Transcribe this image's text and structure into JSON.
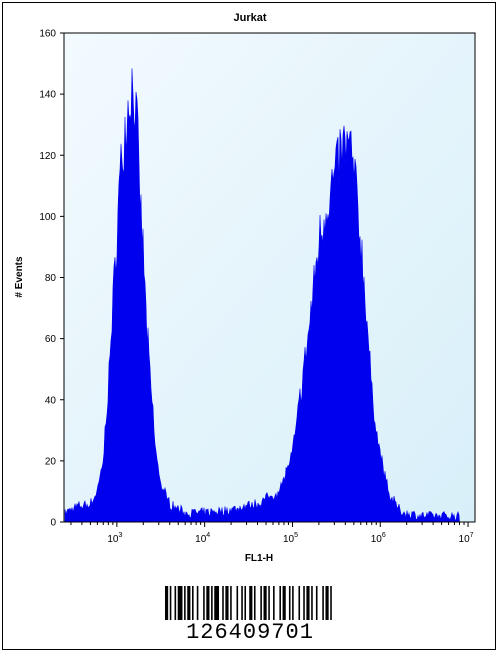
{
  "chart_data": {
    "type": "area",
    "title": "Jurkat",
    "xlabel": "FL1-H",
    "ylabel": "# Events",
    "xscale": "log",
    "xlim": [
      250,
      12000000
    ],
    "ylim": [
      0,
      160
    ],
    "yticks": [
      "0",
      "20",
      "40",
      "60",
      "80",
      "100",
      "120",
      "140",
      "160"
    ],
    "xticks": [
      {
        "base": "10",
        "exp": "3",
        "value": 1000
      },
      {
        "base": "10",
        "exp": "4",
        "value": 10000
      },
      {
        "base": "10",
        "exp": "5",
        "value": 100000
      },
      {
        "base": "10",
        "exp": "6",
        "value": 1000000
      },
      {
        "base": "10",
        "exp": "7",
        "value": 10000000
      }
    ],
    "grid": false,
    "colors": {
      "fill": "#0000ee",
      "plot_background": "#e6f4fb"
    },
    "series": [
      {
        "points": [
          [
            250,
            3
          ],
          [
            350,
            5
          ],
          [
            500,
            6
          ],
          [
            600,
            10
          ],
          [
            700,
            20
          ],
          [
            800,
            45
          ],
          [
            900,
            70
          ],
          [
            1000,
            95
          ],
          [
            1100,
            115
          ],
          [
            1200,
            125
          ],
          [
            1300,
            133
          ],
          [
            1400,
            140
          ],
          [
            1500,
            143
          ],
          [
            1600,
            138
          ],
          [
            1700,
            128
          ],
          [
            1800,
            110
          ],
          [
            2000,
            88
          ],
          [
            2200,
            62
          ],
          [
            2500,
            40
          ],
          [
            2800,
            22
          ],
          [
            3200,
            12
          ],
          [
            4000,
            6
          ],
          [
            6000,
            3
          ],
          [
            10000,
            3
          ],
          [
            20000,
            4
          ],
          [
            40000,
            6
          ],
          [
            70000,
            10
          ],
          [
            100000,
            22
          ],
          [
            150000,
            60
          ],
          [
            200000,
            92
          ],
          [
            250000,
            105
          ],
          [
            300000,
            112
          ],
          [
            350000,
            120
          ],
          [
            400000,
            123
          ],
          [
            450000,
            122
          ],
          [
            500000,
            115
          ],
          [
            600000,
            92
          ],
          [
            700000,
            68
          ],
          [
            800000,
            42
          ],
          [
            1000000,
            22
          ],
          [
            1300000,
            8
          ],
          [
            1800000,
            3
          ],
          [
            3000000,
            2
          ],
          [
            8000000,
            2
          ]
        ]
      }
    ]
  },
  "barcode": {
    "number": "126409701"
  }
}
